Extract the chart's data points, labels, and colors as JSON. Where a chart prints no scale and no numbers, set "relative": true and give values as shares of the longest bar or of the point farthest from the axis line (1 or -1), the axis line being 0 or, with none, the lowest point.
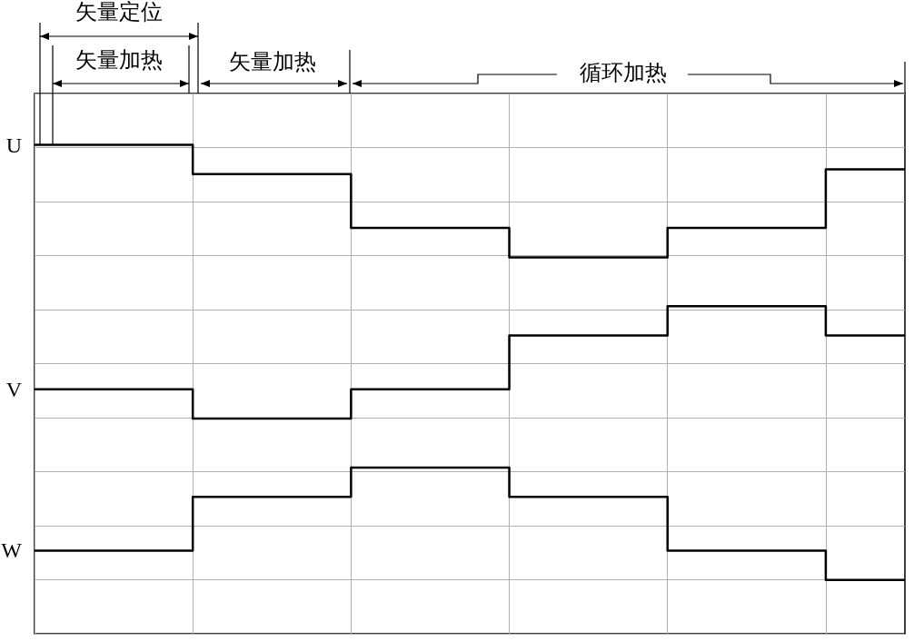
{
  "chart_data": {
    "type": "step",
    "relative": true,
    "categories": [
      null,
      null,
      null,
      null,
      null,
      null,
      null,
      null,
      null,
      null,
      null,
      null
    ],
    "series": [
      {
        "name": "U",
        "color": "#000000",
        "values": [
          1.0,
          1.0,
          0.94,
          0.94,
          0.83,
          0.83,
          0.77,
          0.77,
          0.83,
          0.83,
          0.95,
          0.95
        ]
      },
      {
        "name": "V",
        "color": "#000000",
        "values": [
          0.5,
          0.5,
          0.44,
          0.44,
          0.5,
          0.5,
          0.61,
          0.61,
          0.67,
          0.67,
          0.61,
          0.61
        ]
      },
      {
        "name": "W",
        "color": "#000000",
        "values": [
          0.17,
          0.17,
          0.28,
          0.28,
          0.34,
          0.34,
          0.28,
          0.28,
          0.17,
          0.17,
          0.11,
          0.11
        ]
      }
    ],
    "annotations": [
      "矢量定位",
      "矢量加热",
      "矢量加热",
      "循环加热"
    ],
    "grid": true,
    "legend": false,
    "line_style": "solid",
    "marker": "none"
  }
}
